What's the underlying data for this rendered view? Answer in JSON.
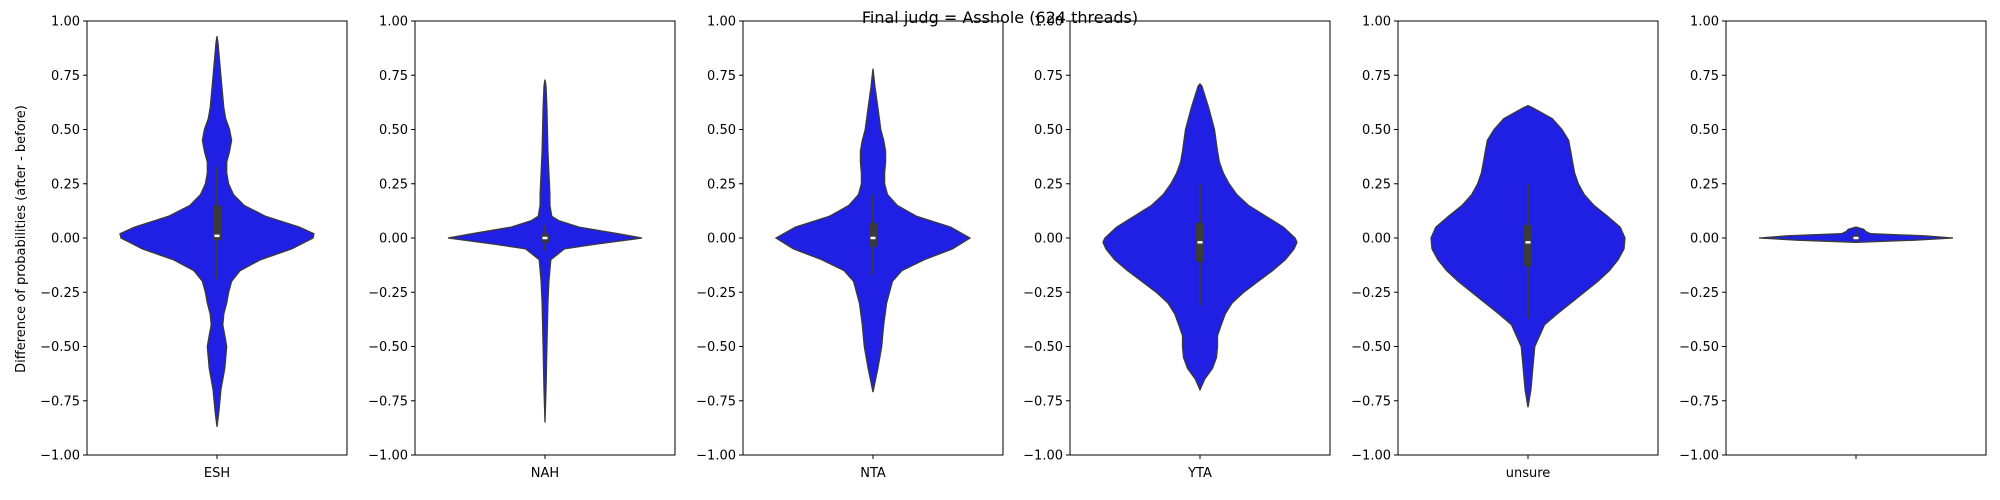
{
  "chart_data": {
    "type": "violin",
    "title": "Final judg = Asshole (624 threads)",
    "ylabel": "Difference of probabilities (after - before)",
    "ylim": [
      -1.0,
      1.0
    ],
    "yticks": [
      "1.00",
      "0.75",
      "0.50",
      "0.25",
      "0.00",
      "−0.25",
      "−0.50",
      "−0.75",
      "−1.00"
    ],
    "ytick_values": [
      1.0,
      0.75,
      0.5,
      0.25,
      0.0,
      -0.25,
      -0.5,
      -0.75,
      -1.0
    ],
    "colors": {
      "violin": "#2020e4",
      "edge": "#3a3a3a"
    },
    "panels": [
      {
        "category": "ESH",
        "min": -0.87,
        "max": 0.93,
        "q1": -0.01,
        "median": 0.01,
        "q3": 0.15,
        "whisker_low": -0.19,
        "whisker_high": 0.33,
        "density": [
          [
            -0.87,
            0.0
          ],
          [
            -0.8,
            0.02
          ],
          [
            -0.7,
            0.04
          ],
          [
            -0.6,
            0.08
          ],
          [
            -0.5,
            0.1
          ],
          [
            -0.45,
            0.08
          ],
          [
            -0.4,
            0.06
          ],
          [
            -0.35,
            0.07
          ],
          [
            -0.3,
            0.1
          ],
          [
            -0.25,
            0.12
          ],
          [
            -0.2,
            0.15
          ],
          [
            -0.15,
            0.24
          ],
          [
            -0.1,
            0.45
          ],
          [
            -0.05,
            0.77
          ],
          [
            0.0,
            0.99
          ],
          [
            0.02,
            1.0
          ],
          [
            0.05,
            0.85
          ],
          [
            0.1,
            0.5
          ],
          [
            0.15,
            0.28
          ],
          [
            0.2,
            0.17
          ],
          [
            0.25,
            0.12
          ],
          [
            0.3,
            0.1
          ],
          [
            0.35,
            0.1
          ],
          [
            0.4,
            0.13
          ],
          [
            0.45,
            0.15
          ],
          [
            0.5,
            0.13
          ],
          [
            0.55,
            0.09
          ],
          [
            0.6,
            0.07
          ],
          [
            0.7,
            0.05
          ],
          [
            0.8,
            0.03
          ],
          [
            0.9,
            0.01
          ],
          [
            0.93,
            0.0
          ]
        ]
      },
      {
        "category": "NAH",
        "min": -0.85,
        "max": 0.73,
        "q1": -0.02,
        "median": 0.0,
        "q3": 0.02,
        "whisker_low": -0.06,
        "whisker_high": 0.06,
        "density": [
          [
            -0.85,
            0.0
          ],
          [
            -0.7,
            0.01
          ],
          [
            -0.5,
            0.02
          ],
          [
            -0.3,
            0.03
          ],
          [
            -0.2,
            0.04
          ],
          [
            -0.1,
            0.06
          ],
          [
            -0.05,
            0.2
          ],
          [
            -0.03,
            0.5
          ],
          [
            0.0,
            1.0
          ],
          [
            0.02,
            0.75
          ],
          [
            0.05,
            0.35
          ],
          [
            0.08,
            0.14
          ],
          [
            0.1,
            0.07
          ],
          [
            0.15,
            0.05
          ],
          [
            0.2,
            0.05
          ],
          [
            0.3,
            0.04
          ],
          [
            0.4,
            0.03
          ],
          [
            0.5,
            0.025
          ],
          [
            0.6,
            0.02
          ],
          [
            0.7,
            0.01
          ],
          [
            0.73,
            0.0
          ]
        ]
      },
      {
        "category": "NTA",
        "min": -0.71,
        "max": 0.78,
        "q1": -0.04,
        "median": 0.0,
        "q3": 0.07,
        "whisker_low": -0.17,
        "whisker_high": 0.2,
        "density": [
          [
            -0.71,
            0.0
          ],
          [
            -0.6,
            0.05
          ],
          [
            -0.5,
            0.09
          ],
          [
            -0.4,
            0.11
          ],
          [
            -0.3,
            0.14
          ],
          [
            -0.2,
            0.2
          ],
          [
            -0.15,
            0.3
          ],
          [
            -0.1,
            0.53
          ],
          [
            -0.05,
            0.82
          ],
          [
            0.0,
            1.0
          ],
          [
            0.05,
            0.8
          ],
          [
            0.1,
            0.45
          ],
          [
            0.15,
            0.25
          ],
          [
            0.2,
            0.15
          ],
          [
            0.25,
            0.12
          ],
          [
            0.3,
            0.12
          ],
          [
            0.35,
            0.13
          ],
          [
            0.4,
            0.13
          ],
          [
            0.45,
            0.11
          ],
          [
            0.5,
            0.08
          ],
          [
            0.6,
            0.05
          ],
          [
            0.7,
            0.02
          ],
          [
            0.78,
            0.0
          ]
        ]
      },
      {
        "category": "YTA",
        "min": -0.7,
        "max": 0.71,
        "q1": -0.11,
        "median": -0.02,
        "q3": 0.07,
        "whisker_low": -0.31,
        "whisker_high": 0.25,
        "density": [
          [
            -0.7,
            0.0
          ],
          [
            -0.65,
            0.05
          ],
          [
            -0.6,
            0.13
          ],
          [
            -0.55,
            0.17
          ],
          [
            -0.5,
            0.18
          ],
          [
            -0.45,
            0.18
          ],
          [
            -0.4,
            0.22
          ],
          [
            -0.35,
            0.26
          ],
          [
            -0.3,
            0.33
          ],
          [
            -0.25,
            0.45
          ],
          [
            -0.2,
            0.6
          ],
          [
            -0.15,
            0.75
          ],
          [
            -0.1,
            0.88
          ],
          [
            -0.05,
            0.97
          ],
          [
            -0.02,
            1.0
          ],
          [
            0.0,
            0.98
          ],
          [
            0.05,
            0.86
          ],
          [
            0.1,
            0.68
          ],
          [
            0.15,
            0.5
          ],
          [
            0.2,
            0.38
          ],
          [
            0.25,
            0.3
          ],
          [
            0.3,
            0.24
          ],
          [
            0.35,
            0.2
          ],
          [
            0.4,
            0.18
          ],
          [
            0.5,
            0.15
          ],
          [
            0.6,
            0.09
          ],
          [
            0.7,
            0.02
          ],
          [
            0.71,
            0.0
          ]
        ]
      },
      {
        "category": "unsure",
        "min": -0.78,
        "max": 0.61,
        "q1": -0.13,
        "median": -0.02,
        "q3": 0.06,
        "whisker_low": -0.37,
        "whisker_high": 0.25,
        "density": [
          [
            -0.78,
            0.0
          ],
          [
            -0.7,
            0.03
          ],
          [
            -0.6,
            0.05
          ],
          [
            -0.5,
            0.07
          ],
          [
            -0.4,
            0.17
          ],
          [
            -0.35,
            0.3
          ],
          [
            -0.3,
            0.44
          ],
          [
            -0.25,
            0.58
          ],
          [
            -0.2,
            0.72
          ],
          [
            -0.15,
            0.84
          ],
          [
            -0.1,
            0.93
          ],
          [
            -0.05,
            0.99
          ],
          [
            0.0,
            1.0
          ],
          [
            0.05,
            0.95
          ],
          [
            0.1,
            0.82
          ],
          [
            0.15,
            0.68
          ],
          [
            0.2,
            0.58
          ],
          [
            0.25,
            0.52
          ],
          [
            0.3,
            0.48
          ],
          [
            0.35,
            0.46
          ],
          [
            0.4,
            0.44
          ],
          [
            0.45,
            0.42
          ],
          [
            0.5,
            0.35
          ],
          [
            0.55,
            0.25
          ],
          [
            0.6,
            0.05
          ],
          [
            0.61,
            0.0
          ]
        ]
      },
      {
        "category": "",
        "min": -0.02,
        "max": 0.05,
        "q1": -0.005,
        "median": 0.0,
        "q3": 0.01,
        "whisker_low": -0.015,
        "whisker_high": 0.035,
        "density": [
          [
            -0.02,
            0.0
          ],
          [
            -0.01,
            0.6
          ],
          [
            0.0,
            1.0
          ],
          [
            0.01,
            0.7
          ],
          [
            0.02,
            0.15
          ],
          [
            0.03,
            0.1
          ],
          [
            0.04,
            0.08
          ],
          [
            0.05,
            0.0
          ]
        ]
      }
    ]
  }
}
